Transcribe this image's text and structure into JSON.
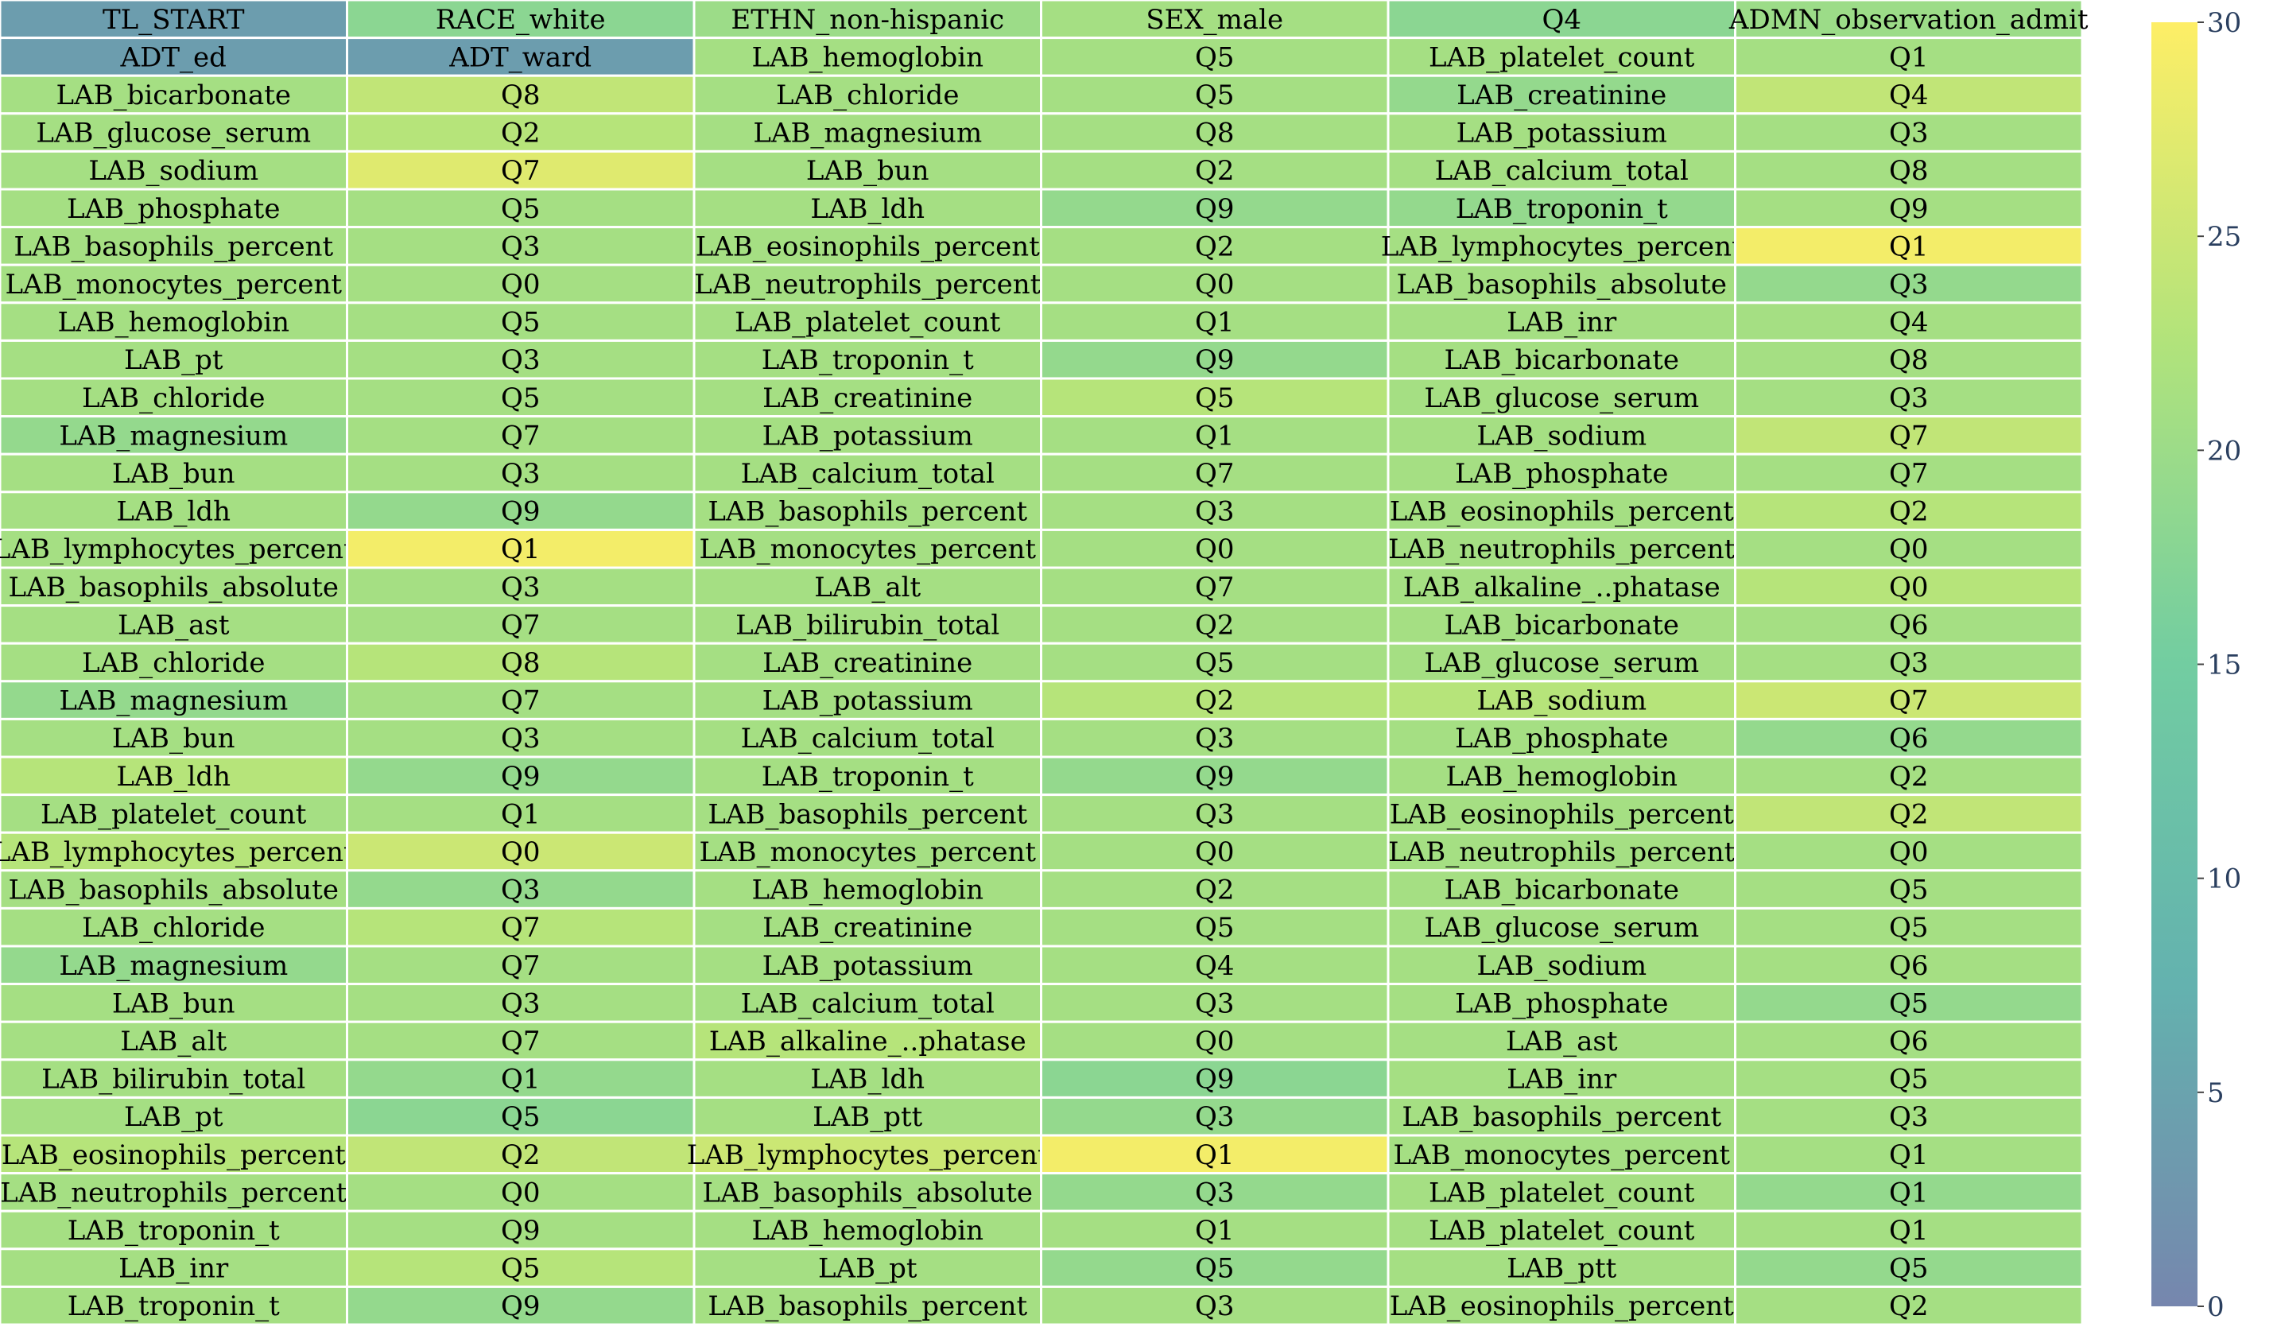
{
  "chart_data": {
    "type": "heatmap",
    "title": "",
    "xlabel": "",
    "ylabel": "",
    "colorbar": {
      "range": [
        0,
        30
      ],
      "ticks": [
        0,
        5,
        10,
        15,
        20,
        25,
        30
      ],
      "colormap": "viridis",
      "opacity": 0.7
    },
    "rows": [
      {
        "labels": [
          "TL_START",
          "RACE_white",
          "ETHN_non-hispanic",
          "SEX_male",
          "Q4",
          "ADMN_observation_admit"
        ],
        "values": [
          4,
          18,
          20,
          21,
          18,
          20
        ]
      },
      {
        "labels": [
          "ADT_ed",
          "ADT_ward",
          "LAB_hemoglobin",
          "Q5",
          "LAB_platelet_count",
          "Q1"
        ],
        "values": [
          4,
          4,
          21,
          21,
          21,
          21
        ]
      },
      {
        "labels": [
          "LAB_bicarbonate",
          "Q8",
          "LAB_chloride",
          "Q5",
          "LAB_creatinine",
          "Q4"
        ],
        "values": [
          21,
          24,
          21,
          21,
          19,
          24
        ]
      },
      {
        "labels": [
          "LAB_glucose_serum",
          "Q2",
          "LAB_magnesium",
          "Q8",
          "LAB_potassium",
          "Q3"
        ],
        "values": [
          21,
          23,
          21,
          21,
          21,
          21
        ]
      },
      {
        "labels": [
          "LAB_sodium",
          "Q7",
          "LAB_bun",
          "Q2",
          "LAB_calcium_total",
          "Q8"
        ],
        "values": [
          21,
          27,
          21,
          21,
          21,
          21
        ]
      },
      {
        "labels": [
          "LAB_phosphate",
          "Q5",
          "LAB_ldh",
          "Q9",
          "LAB_troponin_t",
          "Q9"
        ],
        "values": [
          21,
          21,
          21,
          19,
          19,
          21
        ]
      },
      {
        "labels": [
          "LAB_basophils_percent",
          "Q3",
          "LAB_eosinophils_percent",
          "Q2",
          "LAB_lymphocytes_percent",
          "Q1"
        ],
        "values": [
          21,
          21,
          21,
          21,
          21,
          29
        ]
      },
      {
        "labels": [
          "LAB_monocytes_percent",
          "Q0",
          "LAB_neutrophils_percent",
          "Q0",
          "LAB_basophils_absolute",
          "Q3"
        ],
        "values": [
          21,
          21,
          21,
          21,
          21,
          19
        ]
      },
      {
        "labels": [
          "LAB_hemoglobin",
          "Q5",
          "LAB_platelet_count",
          "Q1",
          "LAB_inr",
          "Q4"
        ],
        "values": [
          21,
          21,
          21,
          21,
          21,
          21
        ]
      },
      {
        "labels": [
          "LAB_pt",
          "Q3",
          "LAB_troponin_t",
          "Q9",
          "LAB_bicarbonate",
          "Q8"
        ],
        "values": [
          21,
          21,
          21,
          19,
          21,
          21
        ]
      },
      {
        "labels": [
          "LAB_chloride",
          "Q5",
          "LAB_creatinine",
          "Q5",
          "LAB_glucose_serum",
          "Q3"
        ],
        "values": [
          21,
          21,
          21,
          23,
          21,
          21
        ]
      },
      {
        "labels": [
          "LAB_magnesium",
          "Q7",
          "LAB_potassium",
          "Q1",
          "LAB_sodium",
          "Q7"
        ],
        "values": [
          19,
          21,
          21,
          21,
          21,
          24
        ]
      },
      {
        "labels": [
          "LAB_bun",
          "Q3",
          "LAB_calcium_total",
          "Q7",
          "LAB_phosphate",
          "Q7"
        ],
        "values": [
          21,
          21,
          21,
          21,
          21,
          21
        ]
      },
      {
        "labels": [
          "LAB_ldh",
          "Q9",
          "LAB_basophils_percent",
          "Q3",
          "LAB_eosinophils_percent",
          "Q2"
        ],
        "values": [
          21,
          19,
          21,
          21,
          21,
          23
        ]
      },
      {
        "labels": [
          "LAB_lymphocytes_percent",
          "Q1",
          "LAB_monocytes_percent",
          "Q0",
          "LAB_neutrophils_percent",
          "Q0"
        ],
        "values": [
          21,
          29,
          21,
          21,
          21,
          21
        ]
      },
      {
        "labels": [
          "LAB_basophils_absolute",
          "Q3",
          "LAB_alt",
          "Q7",
          "LAB_alkaline_..phatase",
          "Q0"
        ],
        "values": [
          21,
          21,
          21,
          21,
          21,
          23
        ]
      },
      {
        "labels": [
          "LAB_ast",
          "Q7",
          "LAB_bilirubin_total",
          "Q2",
          "LAB_bicarbonate",
          "Q6"
        ],
        "values": [
          21,
          21,
          21,
          21,
          21,
          21
        ]
      },
      {
        "labels": [
          "LAB_chloride",
          "Q8",
          "LAB_creatinine",
          "Q5",
          "LAB_glucose_serum",
          "Q3"
        ],
        "values": [
          21,
          23,
          21,
          21,
          21,
          21
        ]
      },
      {
        "labels": [
          "LAB_magnesium",
          "Q7",
          "LAB_potassium",
          "Q2",
          "LAB_sodium",
          "Q7"
        ],
        "values": [
          19,
          21,
          21,
          23,
          23,
          25
        ]
      },
      {
        "labels": [
          "LAB_bun",
          "Q3",
          "LAB_calcium_total",
          "Q3",
          "LAB_phosphate",
          "Q6"
        ],
        "values": [
          21,
          21,
          21,
          21,
          21,
          19
        ]
      },
      {
        "labels": [
          "LAB_ldh",
          "Q9",
          "LAB_troponin_t",
          "Q9",
          "LAB_hemoglobin",
          "Q2"
        ],
        "values": [
          23,
          19,
          21,
          19,
          21,
          21
        ]
      },
      {
        "labels": [
          "LAB_platelet_count",
          "Q1",
          "LAB_basophils_percent",
          "Q3",
          "LAB_eosinophils_percent",
          "Q2"
        ],
        "values": [
          21,
          21,
          21,
          21,
          21,
          24
        ]
      },
      {
        "labels": [
          "LAB_lymphocytes_percent",
          "Q0",
          "LAB_monocytes_percent",
          "Q0",
          "LAB_neutrophils_percent",
          "Q0"
        ],
        "values": [
          23,
          25,
          21,
          21,
          21,
          21
        ]
      },
      {
        "labels": [
          "LAB_basophils_absolute",
          "Q3",
          "LAB_hemoglobin",
          "Q2",
          "LAB_bicarbonate",
          "Q5"
        ],
        "values": [
          21,
          19,
          21,
          21,
          21,
          21
        ]
      },
      {
        "labels": [
          "LAB_chloride",
          "Q7",
          "LAB_creatinine",
          "Q5",
          "LAB_glucose_serum",
          "Q5"
        ],
        "values": [
          21,
          23,
          21,
          21,
          21,
          21
        ]
      },
      {
        "labels": [
          "LAB_magnesium",
          "Q7",
          "LAB_potassium",
          "Q4",
          "LAB_sodium",
          "Q6"
        ],
        "values": [
          19,
          21,
          21,
          21,
          21,
          21
        ]
      },
      {
        "labels": [
          "LAB_bun",
          "Q3",
          "LAB_calcium_total",
          "Q3",
          "LAB_phosphate",
          "Q5"
        ],
        "values": [
          21,
          21,
          21,
          21,
          21,
          19
        ]
      },
      {
        "labels": [
          "LAB_alt",
          "Q7",
          "LAB_alkaline_..phatase",
          "Q0",
          "LAB_ast",
          "Q6"
        ],
        "values": [
          21,
          21,
          23,
          21,
          21,
          21
        ]
      },
      {
        "labels": [
          "LAB_bilirubin_total",
          "Q1",
          "LAB_ldh",
          "Q9",
          "LAB_inr",
          "Q5"
        ],
        "values": [
          21,
          19,
          21,
          18,
          21,
          21
        ]
      },
      {
        "labels": [
          "LAB_pt",
          "Q5",
          "LAB_ptt",
          "Q3",
          "LAB_basophils_percent",
          "Q3"
        ],
        "values": [
          21,
          18,
          21,
          19,
          21,
          21
        ]
      },
      {
        "labels": [
          "LAB_eosinophils_percent",
          "Q2",
          "LAB_lymphocytes_percent",
          "Q1",
          "LAB_monocytes_percent",
          "Q1"
        ],
        "values": [
          23,
          24,
          25,
          29,
          21,
          21
        ]
      },
      {
        "labels": [
          "LAB_neutrophils_percent",
          "Q0",
          "LAB_basophils_absolute",
          "Q3",
          "LAB_platelet_count",
          "Q1"
        ],
        "values": [
          21,
          21,
          21,
          19,
          21,
          19
        ]
      },
      {
        "labels": [
          "LAB_troponin_t",
          "Q9",
          "LAB_hemoglobin",
          "Q1",
          "LAB_platelet_count",
          "Q1"
        ],
        "values": [
          21,
          21,
          21,
          21,
          21,
          21
        ]
      },
      {
        "labels": [
          "LAB_inr",
          "Q5",
          "LAB_pt",
          "Q5",
          "LAB_ptt",
          "Q5"
        ],
        "values": [
          21,
          23,
          21,
          19,
          21,
          19
        ]
      },
      {
        "labels": [
          "LAB_troponin_t",
          "Q9",
          "LAB_basophils_percent",
          "Q3",
          "LAB_eosinophils_percent",
          "Q2"
        ],
        "values": [
          21,
          19,
          21,
          21,
          21,
          21
        ]
      }
    ]
  }
}
